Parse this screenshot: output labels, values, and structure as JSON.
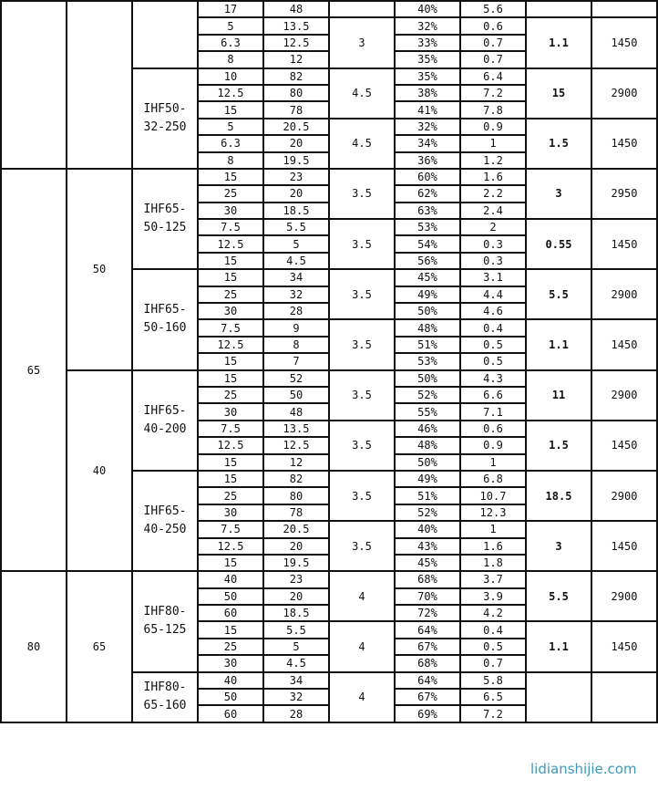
{
  "sections": [
    {
      "inlet": "",
      "outlet": "",
      "models": [
        {
          "name": "",
          "groups": [
            {
              "npsh": "",
              "motor": "",
              "speed": "",
              "rows": [
                [
                  "17",
                  "48",
                  "40%",
                  "5.6"
                ]
              ]
            },
            {
              "npsh": "3",
              "motor": "1.1",
              "speed": "1450",
              "rows": [
                [
                  "5",
                  "13.5",
                  "32%",
                  "0.6"
                ],
                [
                  "6.3",
                  "12.5",
                  "33%",
                  "0.7"
                ],
                [
                  "8",
                  "12",
                  "35%",
                  "0.7"
                ]
              ]
            }
          ]
        },
        {
          "name": "IHF50-32-250",
          "groups": [
            {
              "npsh": "4.5",
              "motor": "15",
              "speed": "2900",
              "rows": [
                [
                  "10",
                  "82",
                  "35%",
                  "6.4"
                ],
                [
                  "12.5",
                  "80",
                  "38%",
                  "7.2"
                ],
                [
                  "15",
                  "78",
                  "41%",
                  "7.8"
                ]
              ]
            },
            {
              "npsh": "4.5",
              "motor": "1.5",
              "speed": "1450",
              "rows": [
                [
                  "5",
                  "20.5",
                  "32%",
                  "0.9"
                ],
                [
                  "6.3",
                  "20",
                  "34%",
                  "1"
                ],
                [
                  "8",
                  "19.5",
                  "36%",
                  "1.2"
                ]
              ]
            }
          ]
        }
      ]
    },
    {
      "inlet": "65",
      "outlets": [
        {
          "outlet": "50",
          "models": [
            {
              "name": "IHF65-50-125",
              "groups": [
                {
                  "npsh": "3.5",
                  "motor": "3",
                  "speed": "2950",
                  "rows": [
                    [
                      "15",
                      "23",
                      "60%",
                      "1.6"
                    ],
                    [
                      "25",
                      "20",
                      "62%",
                      "2.2"
                    ],
                    [
                      "30",
                      "18.5",
                      "63%",
                      "2.4"
                    ]
                  ]
                },
                {
                  "npsh": "3.5",
                  "motor": "0.55",
                  "speed": "1450",
                  "rows": [
                    [
                      "7.5",
                      "5.5",
                      "53%",
                      "2"
                    ],
                    [
                      "12.5",
                      "5",
                      "54%",
                      "0.3"
                    ],
                    [
                      "15",
                      "4.5",
                      "56%",
                      "0.3"
                    ]
                  ]
                }
              ]
            },
            {
              "name": "IHF65-50-160",
              "groups": [
                {
                  "npsh": "3.5",
                  "motor": "5.5",
                  "speed": "2900",
                  "rows": [
                    [
                      "15",
                      "34",
                      "45%",
                      "3.1"
                    ],
                    [
                      "25",
                      "32",
                      "49%",
                      "4.4"
                    ],
                    [
                      "30",
                      "28",
                      "50%",
                      "4.6"
                    ]
                  ]
                },
                {
                  "npsh": "3.5",
                  "motor": "1.1",
                  "speed": "1450",
                  "rows": [
                    [
                      "7.5",
                      "9",
                      "48%",
                      "0.4"
                    ],
                    [
                      "12.5",
                      "8",
                      "51%",
                      "0.5"
                    ],
                    [
                      "15",
                      "7",
                      "53%",
                      "0.5"
                    ]
                  ]
                }
              ]
            }
          ]
        },
        {
          "outlet": "40",
          "models": [
            {
              "name": "IHF65-40-200",
              "groups": [
                {
                  "npsh": "3.5",
                  "motor": "11",
                  "speed": "2900",
                  "rows": [
                    [
                      "15",
                      "52",
                      "50%",
                      "4.3"
                    ],
                    [
                      "25",
                      "50",
                      "52%",
                      "6.6"
                    ],
                    [
                      "30",
                      "48",
                      "55%",
                      "7.1"
                    ]
                  ]
                },
                {
                  "npsh": "3.5",
                  "motor": "1.5",
                  "speed": "1450",
                  "rows": [
                    [
                      "7.5",
                      "13.5",
                      "46%",
                      "0.6"
                    ],
                    [
                      "12.5",
                      "12.5",
                      "48%",
                      "0.9"
                    ],
                    [
                      "15",
                      "12",
                      "50%",
                      "1"
                    ]
                  ]
                }
              ]
            },
            {
              "name": "IHF65-40-250",
              "groups": [
                {
                  "npsh": "3.5",
                  "motor": "18.5",
                  "speed": "2900",
                  "rows": [
                    [
                      "15",
                      "82",
                      "49%",
                      "6.8"
                    ],
                    [
                      "25",
                      "80",
                      "51%",
                      "10.7"
                    ],
                    [
                      "30",
                      "78",
                      "52%",
                      "12.3"
                    ]
                  ]
                },
                {
                  "npsh": "3.5",
                  "motor": "3",
                  "speed": "1450",
                  "rows": [
                    [
                      "7.5",
                      "20.5",
                      "40%",
                      "1"
                    ],
                    [
                      "12.5",
                      "20",
                      "43%",
                      "1.6"
                    ],
                    [
                      "15",
                      "19.5",
                      "45%",
                      "1.8"
                    ]
                  ]
                }
              ]
            }
          ]
        }
      ]
    },
    {
      "inlet": "80",
      "outlets": [
        {
          "outlet": "65",
          "models": [
            {
              "name": "IHF80-65-125",
              "groups": [
                {
                  "npsh": "4",
                  "motor": "5.5",
                  "speed": "2900",
                  "rows": [
                    [
                      "40",
                      "23",
                      "68%",
                      "3.7"
                    ],
                    [
                      "50",
                      "20",
                      "70%",
                      "3.9"
                    ],
                    [
                      "60",
                      "18.5",
                      "72%",
                      "4.2"
                    ]
                  ]
                },
                {
                  "npsh": "4",
                  "motor": "1.1",
                  "speed": "1450",
                  "rows": [
                    [
                      "15",
                      "5.5",
                      "64%",
                      "0.4"
                    ],
                    [
                      "25",
                      "5",
                      "67%",
                      "0.5"
                    ],
                    [
                      "30",
                      "4.5",
                      "68%",
                      "0.7"
                    ]
                  ]
                }
              ]
            },
            {
              "name": "IHF80-65-160",
              "groups": [
                {
                  "npsh": "4",
                  "motor": "",
                  "speed": "",
                  "rows": [
                    [
                      "40",
                      "34",
                      "64%",
                      "5.8"
                    ],
                    [
                      "50",
                      "32",
                      "67%",
                      "6.5"
                    ],
                    [
                      "60",
                      "28",
                      "69%",
                      "7.2"
                    ]
                  ]
                }
              ]
            }
          ]
        }
      ]
    }
  ],
  "watermark": "lidianshijie.com"
}
